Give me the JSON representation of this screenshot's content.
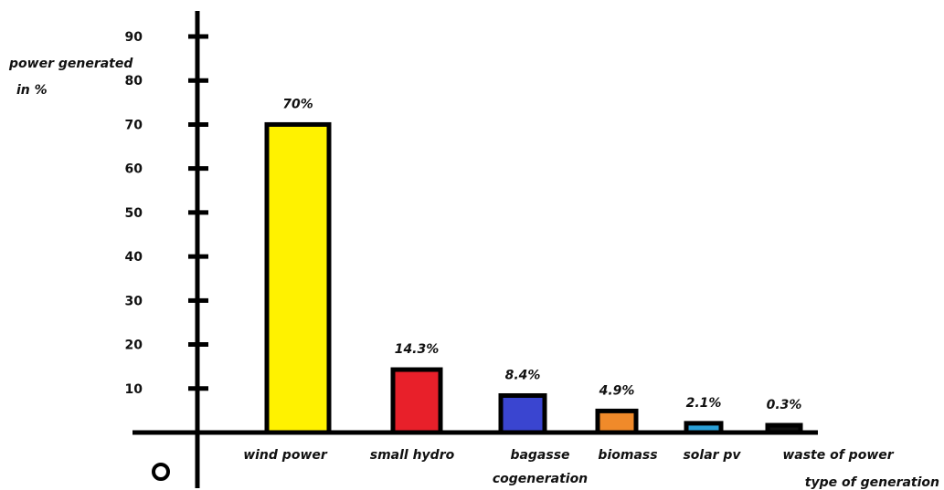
{
  "chart_data": {
    "type": "bar",
    "ylabel": [
      "power generated",
      "in %"
    ],
    "xlabel": "type of generation",
    "origin_label": "O",
    "yticks": [
      10,
      20,
      30,
      40,
      50,
      60,
      70,
      80,
      90
    ],
    "ylim": [
      0,
      90
    ],
    "categories": [
      [
        "wind power"
      ],
      [
        "small hydro"
      ],
      [
        "bagasse",
        "cogeneration"
      ],
      [
        "biomass"
      ],
      [
        "solar pv"
      ],
      [
        "waste of power"
      ]
    ],
    "values": [
      70,
      14.3,
      8.4,
      4.9,
      2.1,
      0.3
    ],
    "data_labels": [
      "70%",
      "14.3%",
      "8.4%",
      "4.9%",
      "2.1%",
      "0.3%"
    ],
    "colors": [
      "#fff200",
      "#e8202a",
      "#3a45d0",
      "#f08a2a",
      "#2aa0d8",
      "#111111"
    ],
    "grid": false,
    "legend": "none"
  }
}
